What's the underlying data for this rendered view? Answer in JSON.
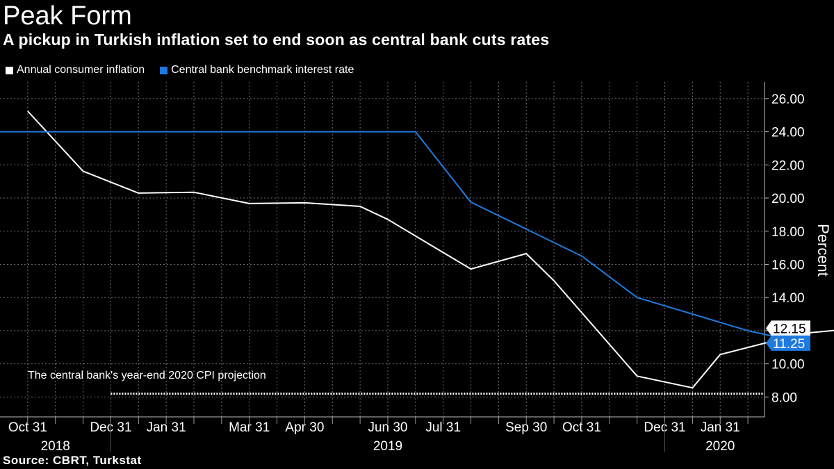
{
  "title": "Peak Form",
  "subtitle": "A pickup in Turkish inflation set to end soon as central bank cuts rates",
  "source": "Source: CBRT, Turkstat",
  "colors": {
    "inflation": "#ffffff",
    "rate": "#1f7ae0",
    "grid": "#7a7a7a",
    "background": "#000000"
  },
  "chart_data": {
    "type": "line",
    "ylabel": "Percent",
    "ylim": [
      6.8,
      27.0
    ],
    "yticks": [
      "8.00",
      "10.00",
      "12.00",
      "14.00",
      "16.00",
      "18.00",
      "20.00",
      "22.00",
      "24.00",
      "26.00"
    ],
    "xticks": [
      "Oct 31",
      "Dec 31",
      "Jan 31",
      "Mar 31",
      "Apr 30",
      "Jun 30",
      "Jul 31",
      "Sep 30",
      "Oct 31",
      "Dec 31",
      "Jan 31"
    ],
    "years": [
      "2018",
      "2019",
      "2020"
    ],
    "series": [
      {
        "name": "Annual consumer inflation",
        "color": "#ffffff",
        "points": [
          [
            1.0,
            25.24
          ],
          [
            2.0,
            21.62
          ],
          [
            3.0,
            20.3
          ],
          [
            4.0,
            20.35
          ],
          [
            5.0,
            19.67
          ],
          [
            6.0,
            19.71
          ],
          [
            7.0,
            19.5
          ],
          [
            7.5,
            18.71
          ],
          [
            9.0,
            15.72
          ],
          [
            10.0,
            16.65
          ],
          [
            10.5,
            15.01
          ],
          [
            12.0,
            9.26
          ],
          [
            13.0,
            8.55
          ],
          [
            13.5,
            10.56
          ],
          [
            15.0,
            11.84
          ],
          [
            16.0,
            12.15
          ]
        ]
      },
      {
        "name": "Central bank benchmark interest rate",
        "color": "#1f7ae0",
        "points": [
          [
            0.0,
            24.0
          ],
          [
            8.0,
            24.0
          ],
          [
            9.0,
            19.75
          ],
          [
            11.0,
            16.5
          ],
          [
            12.0,
            14.0
          ],
          [
            14.0,
            12.0
          ],
          [
            15.0,
            11.25
          ]
        ]
      }
    ],
    "last_values": {
      "inflation": "12.15",
      "rate": "11.25"
    },
    "reference_line": {
      "value": 8.2,
      "label": "The central bank's year-end 2020 CPI projection"
    }
  }
}
